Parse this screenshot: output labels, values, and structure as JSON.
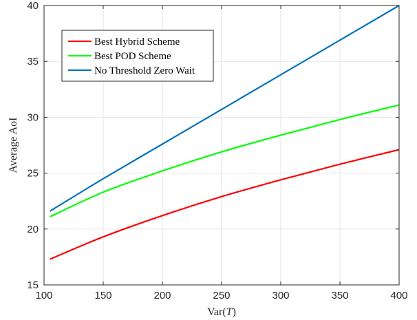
{
  "chart_data": {
    "type": "line",
    "title": "",
    "xlabel": "Var(T)",
    "xlabel_prefix": "Var(",
    "xlabel_var": "T",
    "xlabel_suffix": ")",
    "ylabel": "Average AoI",
    "xlim": [
      100,
      400
    ],
    "ylim": [
      15,
      40
    ],
    "xticks": [
      100,
      150,
      200,
      250,
      300,
      350,
      400
    ],
    "yticks": [
      15,
      20,
      25,
      30,
      35,
      40
    ],
    "grid": true,
    "legend_position": "top-left",
    "x": [
      105,
      150,
      200,
      250,
      300,
      350,
      400
    ],
    "series": [
      {
        "name": "Best Hybrid Scheme",
        "color": "#ff0000",
        "values": [
          17.3,
          19.3,
          21.2,
          22.9,
          24.4,
          25.8,
          27.1
        ]
      },
      {
        "name": "Best POD Scheme",
        "color": "#00ff00",
        "values": [
          21.1,
          23.3,
          25.2,
          26.9,
          28.4,
          29.8,
          31.1
        ]
      },
      {
        "name": "No Threshold Zero Wait",
        "color": "#0072bd",
        "values": [
          21.6,
          24.5,
          27.6,
          30.7,
          33.8,
          36.9,
          40.0
        ]
      }
    ]
  }
}
